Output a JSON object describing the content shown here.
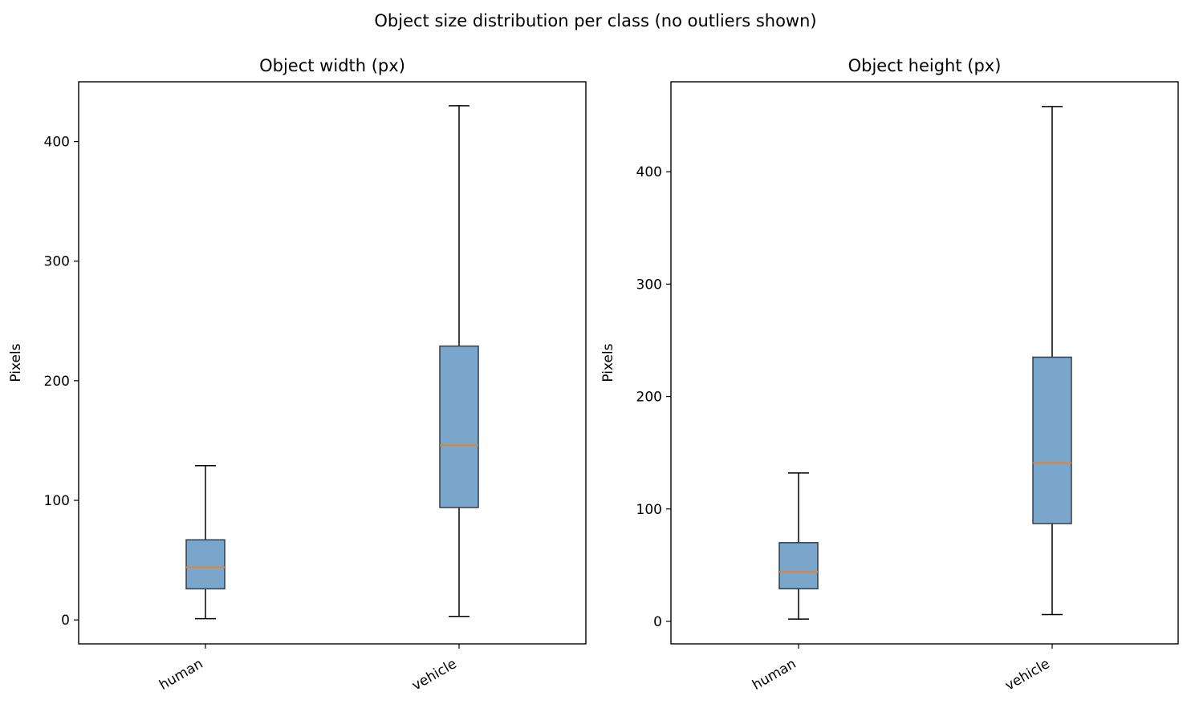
{
  "figure": {
    "suptitle": "Object size distribution per class (no outliers shown)"
  },
  "style": {
    "box_fill": "#7ba6cc",
    "box_edge": "#2f3f4f",
    "median_color": "#e8822a",
    "whisker_color": "#000000"
  },
  "chart_data": [
    {
      "type": "box",
      "title": "Object width (px)",
      "xlabel": "",
      "ylabel": "Pixels",
      "categories": [
        "human",
        "vehicle"
      ],
      "ylim": [
        -20,
        450
      ],
      "yticks": [
        0,
        100,
        200,
        300,
        400
      ],
      "boxes": [
        {
          "name": "human",
          "whisker_low": 1,
          "q1": 26,
          "median": 44,
          "q3": 67,
          "whisker_high": 129
        },
        {
          "name": "vehicle",
          "whisker_low": 3,
          "q1": 94,
          "median": 146,
          "q3": 229,
          "whisker_high": 430
        }
      ],
      "grid": false,
      "outliers_shown": false
    },
    {
      "type": "box",
      "title": "Object height (px)",
      "xlabel": "",
      "ylabel": "Pixels",
      "categories": [
        "human",
        "vehicle"
      ],
      "ylim": [
        -20,
        480
      ],
      "yticks": [
        0,
        100,
        200,
        300,
        400
      ],
      "boxes": [
        {
          "name": "human",
          "whisker_low": 2,
          "q1": 29,
          "median": 44,
          "q3": 70,
          "whisker_high": 132
        },
        {
          "name": "vehicle",
          "whisker_low": 6,
          "q1": 87,
          "median": 141,
          "q3": 235,
          "whisker_high": 458
        }
      ],
      "grid": false,
      "outliers_shown": false
    }
  ]
}
